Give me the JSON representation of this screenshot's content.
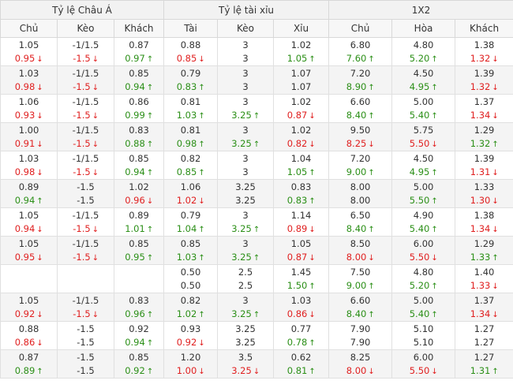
{
  "colors": {
    "up": "#2b8f17",
    "down": "#e02020",
    "neutral": "#333333"
  },
  "icons": {
    "up": "arrow-up-icon",
    "down": "arrow-down-icon"
  },
  "groups": [
    "Tỷ lệ Châu Á",
    "Tỷ lệ tài xỉu",
    "1X2"
  ],
  "columns": [
    "Chủ",
    "Kèo",
    "Khách",
    "Tài",
    "Kèo",
    "Xỉu",
    "Chủ",
    "Hòa",
    "Khách"
  ],
  "rows": [
    [
      [
        "1.05",
        "0.95",
        "d"
      ],
      [
        "-1/1.5",
        "-1.5",
        "d"
      ],
      [
        "0.87",
        "0.97",
        "u"
      ],
      [
        "0.88",
        "0.85",
        "d"
      ],
      [
        "3",
        "3",
        ""
      ],
      [
        "1.02",
        "1.05",
        "u"
      ],
      [
        "6.80",
        "7.60",
        "u"
      ],
      [
        "4.80",
        "5.20",
        "u"
      ],
      [
        "1.38",
        "1.32",
        "d"
      ]
    ],
    [
      [
        "1.03",
        "0.98",
        "d"
      ],
      [
        "-1/1.5",
        "-1.5",
        "d"
      ],
      [
        "0.85",
        "0.94",
        "u"
      ],
      [
        "0.79",
        "0.83",
        "u"
      ],
      [
        "3",
        "3",
        ""
      ],
      [
        "1.07",
        "1.07",
        ""
      ],
      [
        "7.20",
        "8.90",
        "u"
      ],
      [
        "4.50",
        "4.95",
        "u"
      ],
      [
        "1.39",
        "1.32",
        "d"
      ]
    ],
    [
      [
        "1.06",
        "0.93",
        "d"
      ],
      [
        "-1/1.5",
        "-1.5",
        "d"
      ],
      [
        "0.86",
        "0.99",
        "u"
      ],
      [
        "0.81",
        "1.03",
        "u"
      ],
      [
        "3",
        "3.25",
        "u"
      ],
      [
        "1.02",
        "0.87",
        "d"
      ],
      [
        "6.60",
        "8.40",
        "u"
      ],
      [
        "5.00",
        "5.40",
        "u"
      ],
      [
        "1.37",
        "1.34",
        "d"
      ]
    ],
    [
      [
        "1.00",
        "0.91",
        "d"
      ],
      [
        "-1/1.5",
        "-1.5",
        "d"
      ],
      [
        "0.83",
        "0.88",
        "u"
      ],
      [
        "0.81",
        "0.98",
        "u"
      ],
      [
        "3",
        "3.25",
        "u"
      ],
      [
        "1.02",
        "0.82",
        "d"
      ],
      [
        "9.50",
        "8.25",
        "d"
      ],
      [
        "5.75",
        "5.50",
        "d"
      ],
      [
        "1.29",
        "1.32",
        "u"
      ]
    ],
    [
      [
        "1.03",
        "0.98",
        "d"
      ],
      [
        "-1/1.5",
        "-1.5",
        "d"
      ],
      [
        "0.85",
        "0.94",
        "u"
      ],
      [
        "0.82",
        "0.85",
        "u"
      ],
      [
        "3",
        "3",
        ""
      ],
      [
        "1.04",
        "1.05",
        "u"
      ],
      [
        "7.20",
        "9.00",
        "u"
      ],
      [
        "4.50",
        "4.95",
        "u"
      ],
      [
        "1.39",
        "1.31",
        "d"
      ]
    ],
    [
      [
        "0.89",
        "0.94",
        "u"
      ],
      [
        "-1.5",
        "-1.5",
        ""
      ],
      [
        "1.02",
        "0.96",
        "d"
      ],
      [
        "1.06",
        "1.02",
        "d"
      ],
      [
        "3.25",
        "3.25",
        ""
      ],
      [
        "0.83",
        "0.83",
        "u"
      ],
      [
        "8.00",
        "8.00",
        ""
      ],
      [
        "5.00",
        "5.50",
        "u"
      ],
      [
        "1.33",
        "1.30",
        "d"
      ]
    ],
    [
      [
        "1.05",
        "0.94",
        "d"
      ],
      [
        "-1/1.5",
        "-1.5",
        "d"
      ],
      [
        "0.89",
        "1.01",
        "u"
      ],
      [
        "0.79",
        "1.04",
        "u"
      ],
      [
        "3",
        "3.25",
        "u"
      ],
      [
        "1.14",
        "0.89",
        "d"
      ],
      [
        "6.50",
        "8.40",
        "u"
      ],
      [
        "4.90",
        "5.40",
        "u"
      ],
      [
        "1.38",
        "1.34",
        "d"
      ]
    ],
    [
      [
        "1.05",
        "0.95",
        "d"
      ],
      [
        "-1/1.5",
        "-1.5",
        "d"
      ],
      [
        "0.85",
        "0.95",
        "u"
      ],
      [
        "0.85",
        "1.03",
        "u"
      ],
      [
        "3",
        "3.25",
        "u"
      ],
      [
        "1.05",
        "0.87",
        "d"
      ],
      [
        "8.50",
        "8.00",
        "d"
      ],
      [
        "6.00",
        "5.50",
        "d"
      ],
      [
        "1.29",
        "1.33",
        "u"
      ]
    ],
    [
      [
        "",
        "",
        ""
      ],
      [
        "",
        "",
        ""
      ],
      [
        "",
        "",
        ""
      ],
      [
        "0.50",
        "0.50",
        ""
      ],
      [
        "2.5",
        "2.5",
        ""
      ],
      [
        "1.45",
        "1.50",
        "u"
      ],
      [
        "7.50",
        "9.00",
        "u"
      ],
      [
        "4.80",
        "5.20",
        "u"
      ],
      [
        "1.40",
        "1.33",
        "d"
      ]
    ],
    [
      [
        "1.05",
        "0.92",
        "d"
      ],
      [
        "-1/1.5",
        "-1.5",
        "d"
      ],
      [
        "0.83",
        "0.96",
        "u"
      ],
      [
        "0.82",
        "1.02",
        "u"
      ],
      [
        "3",
        "3.25",
        "u"
      ],
      [
        "1.03",
        "0.86",
        "d"
      ],
      [
        "6.60",
        "8.40",
        "u"
      ],
      [
        "5.00",
        "5.40",
        "u"
      ],
      [
        "1.37",
        "1.34",
        "d"
      ]
    ],
    [
      [
        "0.88",
        "0.86",
        "d"
      ],
      [
        "-1.5",
        "-1.5",
        ""
      ],
      [
        "0.92",
        "0.94",
        "u"
      ],
      [
        "0.93",
        "0.92",
        "d"
      ],
      [
        "3.25",
        "3.25",
        ""
      ],
      [
        "0.77",
        "0.78",
        "u"
      ],
      [
        "7.90",
        "7.90",
        ""
      ],
      [
        "5.10",
        "5.10",
        ""
      ],
      [
        "1.27",
        "1.27",
        ""
      ]
    ],
    [
      [
        "0.87",
        "0.89",
        "u"
      ],
      [
        "-1.5",
        "-1.5",
        ""
      ],
      [
        "0.85",
        "0.92",
        "u"
      ],
      [
        "1.20",
        "1.00",
        "d"
      ],
      [
        "3.5",
        "3.25",
        "d"
      ],
      [
        "0.62",
        "0.81",
        "u"
      ],
      [
        "8.25",
        "8.00",
        "d"
      ],
      [
        "6.00",
        "5.50",
        "d"
      ],
      [
        "1.27",
        "1.31",
        "u"
      ]
    ]
  ]
}
